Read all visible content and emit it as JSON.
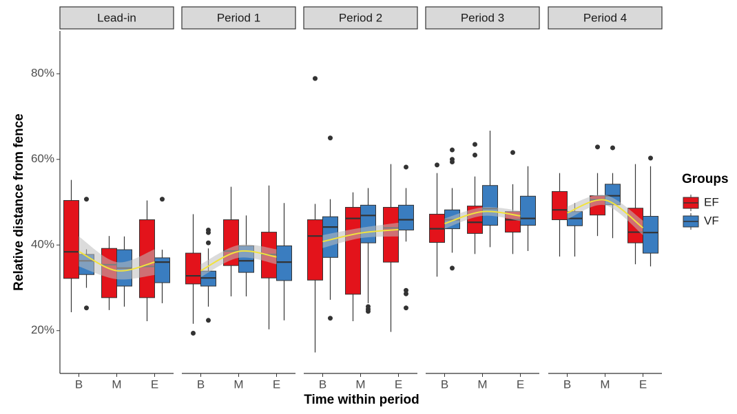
{
  "chart_data": {
    "type": "box",
    "y_label": "Relative distance from fence",
    "x_label": "Time within period",
    "legend_title": "Groups",
    "groups": [
      {
        "name": "EF",
        "color": "#e3131b"
      },
      {
        "name": "VF",
        "color": "#3a7dc0"
      }
    ],
    "smooth_color": "#f2e33c",
    "ylim": [
      10,
      90
    ],
    "yticks": [
      {
        "value": 20,
        "label": "20%"
      },
      {
        "value": 40,
        "label": "40%"
      },
      {
        "value": 60,
        "label": "60%"
      },
      {
        "value": 80,
        "label": "80%"
      }
    ],
    "facets": [
      {
        "title": "Lead-in",
        "categories": [
          "B",
          "M",
          "E"
        ],
        "boxes": [
          [
            {
              "min": 24.3,
              "q1": 32.2,
              "median": 38.4,
              "q3": 50.4,
              "max": 55.2,
              "outliers": []
            },
            {
              "min": 24.8,
              "q1": 27.7,
              "median": 35.4,
              "q3": 39.2,
              "max": 42.1,
              "outliers": []
            },
            {
              "min": 22.2,
              "q1": 27.7,
              "median": 35,
              "q3": 45.9,
              "max": 50.4,
              "outliers": []
            }
          ],
          [
            {
              "min": 30,
              "q1": 33.1,
              "median": 36.3,
              "q3": 37.8,
              "max": 39,
              "outliers": [
                50.7,
                25.3
              ]
            },
            {
              "min": 25.6,
              "q1": 30.4,
              "median": 34.6,
              "q3": 38.9,
              "max": 42,
              "outliers": []
            },
            {
              "min": 26.4,
              "q1": 31.2,
              "median": 36,
              "q3": 37,
              "max": 38.9,
              "outliers": [
                50.7
              ]
            }
          ]
        ],
        "smooth": {
          "values": [
            38.5,
            34,
            36
          ],
          "lower": [
            35,
            32,
            33
          ],
          "upper": [
            42,
            36,
            39
          ]
        }
      },
      {
        "title": "Period 1",
        "categories": [
          "B",
          "M",
          "E"
        ],
        "boxes": [
          [
            {
              "min": 21.6,
              "q1": 30.9,
              "median": 32.8,
              "q3": 38.1,
              "max": 47.2,
              "outliers": [
                19.4
              ]
            },
            {
              "min": 28,
              "q1": 35.2,
              "median": 38.6,
              "q3": 45.9,
              "max": 53.6,
              "outliers": []
            },
            {
              "min": 20.3,
              "q1": 32.3,
              "median": 37.8,
              "q3": 43,
              "max": 53.9,
              "outliers": []
            }
          ],
          [
            {
              "min": 25.6,
              "q1": 30.4,
              "median": 32.3,
              "q3": 33.9,
              "max": 39.2,
              "outliers": [
                43.5,
                42.9,
                40.5,
                22.4
              ]
            },
            {
              "min": 28,
              "q1": 33.6,
              "median": 36.3,
              "q3": 39.8,
              "max": 46.9,
              "outliers": []
            },
            {
              "min": 22.4,
              "q1": 31.7,
              "median": 36,
              "q3": 39.8,
              "max": 49.8,
              "outliers": []
            }
          ]
        ],
        "smooth": {
          "values": [
            34,
            38.5,
            37.2
          ],
          "lower": [
            32.5,
            37,
            35.5
          ],
          "upper": [
            35.5,
            40,
            39
          ]
        }
      },
      {
        "title": "Period 2",
        "categories": [
          "B",
          "M",
          "E"
        ],
        "boxes": [
          [
            {
              "min": 14.9,
              "q1": 31.8,
              "median": 42.1,
              "q3": 45.9,
              "max": 49.6,
              "outliers": [
                78.9
              ]
            },
            {
              "min": 22.2,
              "q1": 28.5,
              "median": 46.2,
              "q3": 48.8,
              "max": 52.3,
              "outliers": []
            },
            {
              "min": 19.7,
              "q1": 36,
              "median": 44,
              "q3": 48.8,
              "max": 58.9,
              "outliers": []
            }
          ],
          [
            {
              "min": 27.2,
              "q1": 37.1,
              "median": 44.2,
              "q3": 46.6,
              "max": 50.7,
              "outliers": [
                65,
                22.9
              ]
            },
            {
              "min": 26.4,
              "q1": 40.5,
              "median": 46.9,
              "q3": 49.3,
              "max": 53.3,
              "outliers": [
                25.6,
                25,
                24.5
              ]
            },
            {
              "min": 40.8,
              "q1": 43.5,
              "median": 45.9,
              "q3": 49.3,
              "max": 53.3,
              "outliers": [
                58.2,
                29.4,
                28.6,
                25.3
              ]
            }
          ]
        ],
        "smooth": {
          "values": [
            40.8,
            42.8,
            43.6
          ],
          "lower": [
            39.3,
            41.6,
            42
          ],
          "upper": [
            42.3,
            44,
            45.2
          ]
        }
      },
      {
        "title": "Period 3",
        "categories": [
          "B",
          "M",
          "E"
        ],
        "boxes": [
          [
            {
              "min": 32.6,
              "q1": 40.6,
              "median": 43.8,
              "q3": 47.2,
              "max": 56.8,
              "outliers": [
                58.7
              ]
            },
            {
              "min": 37.9,
              "q1": 42.7,
              "median": 45.3,
              "q3": 49.1,
              "max": 56,
              "outliers": [
                63.5,
                61
              ]
            },
            {
              "min": 37.9,
              "q1": 43,
              "median": 45.9,
              "q3": 47.8,
              "max": 54.2,
              "outliers": [
                61.6
              ]
            }
          ],
          [
            {
              "min": 38.2,
              "q1": 43.8,
              "median": 45.9,
              "q3": 48.2,
              "max": 53.3,
              "outliers": [
                62.2,
                60,
                59.4,
                34.6
              ]
            },
            {
              "min": 39.5,
              "q1": 44.6,
              "median": 48.5,
              "q3": 53.9,
              "max": 66.7,
              "outliers": []
            },
            {
              "min": 38.6,
              "q1": 44.6,
              "median": 46.2,
              "q3": 51.4,
              "max": 58.4,
              "outliers": []
            }
          ]
        ],
        "smooth": {
          "values": [
            45,
            47.8,
            46.8
          ],
          "lower": [
            43.8,
            46.8,
            45.6
          ],
          "upper": [
            46.2,
            48.8,
            48
          ]
        }
      },
      {
        "title": "Period 4",
        "categories": [
          "B",
          "M",
          "E"
        ],
        "boxes": [
          [
            {
              "min": 37.3,
              "q1": 45.9,
              "median": 48.2,
              "q3": 52.5,
              "max": 56.8,
              "outliers": []
            },
            {
              "min": 42.1,
              "q1": 47,
              "median": 50.6,
              "q3": 51.5,
              "max": 56.8,
              "outliers": [
                62.9
              ]
            },
            {
              "min": 35.5,
              "q1": 40.5,
              "median": 43,
              "q3": 48.6,
              "max": 58.9,
              "outliers": []
            }
          ],
          [
            {
              "min": 37.3,
              "q1": 44.5,
              "median": 46.2,
              "q3": 47.8,
              "max": 49.8,
              "outliers": []
            },
            {
              "min": 41.6,
              "q1": 49.4,
              "median": 51.5,
              "q3": 54.2,
              "max": 56.8,
              "outliers": [
                62.7
              ]
            },
            {
              "min": 35,
              "q1": 38.1,
              "median": 42.9,
              "q3": 46.7,
              "max": 58.4,
              "outliers": [
                60.3
              ]
            }
          ]
        ],
        "smooth": {
          "values": [
            47.5,
            50.5,
            44
          ],
          "lower": [
            46,
            49.3,
            42.3
          ],
          "upper": [
            49,
            51.7,
            45.7
          ]
        }
      }
    ]
  }
}
